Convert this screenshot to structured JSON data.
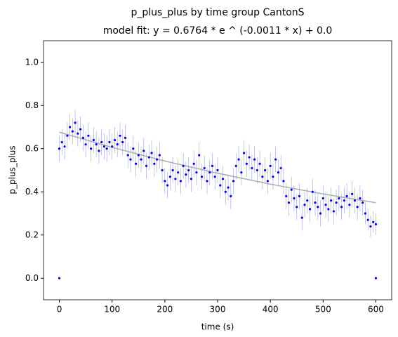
{
  "chart_data": {
    "type": "scatter",
    "title": "p_plus_plus by time group CantonS",
    "subtitle": "model fit: y = 0.6764 * e ^ (-0.0011 * x) + 0.0",
    "x_label": "time (s)",
    "y_label": "p_plus_plus",
    "xlim": [
      -30,
      630
    ],
    "ylim": [
      -0.1,
      1.1
    ],
    "xticks": [
      0,
      100,
      200,
      300,
      400,
      500,
      600
    ],
    "yticks": [
      {
        "value": 0,
        "label": "0.0"
      },
      {
        "value": 0.2,
        "label": "0.2"
      },
      {
        "value": 0.4,
        "label": "0.4"
      },
      {
        "value": 0.6,
        "label": "0.6"
      },
      {
        "value": 0.8,
        "label": "0.8"
      },
      {
        "value": 1,
        "label": "1.0"
      }
    ],
    "series": [
      {
        "color": "#0000ff",
        "error_color": "#aaaaee",
        "x": [
          0,
          5,
          10,
          15,
          20,
          25,
          30,
          35,
          40,
          45,
          50,
          55,
          60,
          65,
          70,
          75,
          80,
          85,
          90,
          95,
          100,
          105,
          110,
          115,
          120,
          125,
          130,
          135,
          140,
          145,
          150,
          155,
          160,
          165,
          170,
          175,
          180,
          185,
          190,
          195,
          200,
          205,
          210,
          215,
          220,
          225,
          230,
          235,
          240,
          245,
          250,
          255,
          260,
          265,
          270,
          275,
          280,
          285,
          290,
          295,
          300,
          305,
          310,
          315,
          320,
          325,
          330,
          335,
          340,
          345,
          350,
          355,
          360,
          365,
          370,
          375,
          380,
          385,
          390,
          395,
          400,
          405,
          410,
          415,
          420,
          425,
          430,
          435,
          440,
          445,
          450,
          455,
          460,
          465,
          470,
          475,
          480,
          485,
          490,
          495,
          500,
          505,
          510,
          515,
          520,
          525,
          530,
          535,
          540,
          545,
          550,
          555,
          560,
          565,
          570,
          575,
          580,
          585,
          590,
          595,
          600
        ],
        "values": [
          0.6,
          0.63,
          0.61,
          0.66,
          0.7,
          0.68,
          0.72,
          0.67,
          0.69,
          0.65,
          0.62,
          0.66,
          0.6,
          0.64,
          0.62,
          0.59,
          0.63,
          0.61,
          0.6,
          0.63,
          0.61,
          0.64,
          0.62,
          0.66,
          0.63,
          0.65,
          0.57,
          0.55,
          0.6,
          0.53,
          0.57,
          0.55,
          0.59,
          0.52,
          0.56,
          0.58,
          0.53,
          0.55,
          0.57,
          0.5,
          0.45,
          0.43,
          0.47,
          0.5,
          0.46,
          0.49,
          0.45,
          0.52,
          0.48,
          0.5,
          0.46,
          0.53,
          0.49,
          0.57,
          0.47,
          0.51,
          0.45,
          0.49,
          0.52,
          0.47,
          0.5,
          0.43,
          0.46,
          0.4,
          0.42,
          0.38,
          0.45,
          0.52,
          0.55,
          0.49,
          0.58,
          0.53,
          0.56,
          0.51,
          0.55,
          0.5,
          0.53,
          0.47,
          0.5,
          0.45,
          0.52,
          0.47,
          0.55,
          0.49,
          0.51,
          0.45,
          0.38,
          0.35,
          0.41,
          0.37,
          0.33,
          0.38,
          0.28,
          0.34,
          0.36,
          0.32,
          0.4,
          0.35,
          0.33,
          0.3,
          0.37,
          0.34,
          0.32,
          0.36,
          0.31,
          0.35,
          0.37,
          0.33,
          0.36,
          0.38,
          0.34,
          0.39,
          0.36,
          0.33,
          0.37,
          0.35,
          0.3,
          0.27,
          0.24,
          0.26,
          0.25
        ],
        "errors": [
          0.06,
          0.06,
          0.06,
          0.06,
          0.06,
          0.06,
          0.06,
          0.06,
          0.06,
          0.06,
          0.06,
          0.06,
          0.06,
          0.06,
          0.06,
          0.06,
          0.06,
          0.06,
          0.06,
          0.06,
          0.06,
          0.06,
          0.06,
          0.06,
          0.06,
          0.06,
          0.06,
          0.06,
          0.06,
          0.06,
          0.06,
          0.06,
          0.06,
          0.06,
          0.06,
          0.06,
          0.06,
          0.06,
          0.06,
          0.06,
          0.06,
          0.06,
          0.06,
          0.06,
          0.06,
          0.06,
          0.06,
          0.06,
          0.06,
          0.06,
          0.06,
          0.06,
          0.06,
          0.06,
          0.06,
          0.06,
          0.06,
          0.06,
          0.06,
          0.06,
          0.06,
          0.06,
          0.06,
          0.06,
          0.06,
          0.06,
          0.06,
          0.06,
          0.06,
          0.06,
          0.06,
          0.06,
          0.06,
          0.06,
          0.06,
          0.06,
          0.06,
          0.06,
          0.06,
          0.06,
          0.06,
          0.06,
          0.06,
          0.06,
          0.06,
          0.06,
          0.06,
          0.06,
          0.06,
          0.06,
          0.06,
          0.06,
          0.06,
          0.06,
          0.06,
          0.06,
          0.06,
          0.06,
          0.06,
          0.06,
          0.06,
          0.06,
          0.06,
          0.06,
          0.06,
          0.06,
          0.06,
          0.06,
          0.06,
          0.06,
          0.06,
          0.06,
          0.06,
          0.06,
          0.06,
          0.06,
          0.05,
          0.05,
          0.05,
          0.05,
          0.05
        ]
      },
      {
        "color": "#0000ff",
        "x": [
          0,
          600
        ],
        "values": [
          0,
          0
        ]
      }
    ],
    "fit": {
      "color": "#999999",
      "x": [
        0,
        100,
        200,
        300,
        400,
        500,
        600
      ],
      "values": [
        0.6764,
        0.6059,
        0.5428,
        0.4863,
        0.4356,
        0.3902,
        0.3496
      ]
    }
  }
}
